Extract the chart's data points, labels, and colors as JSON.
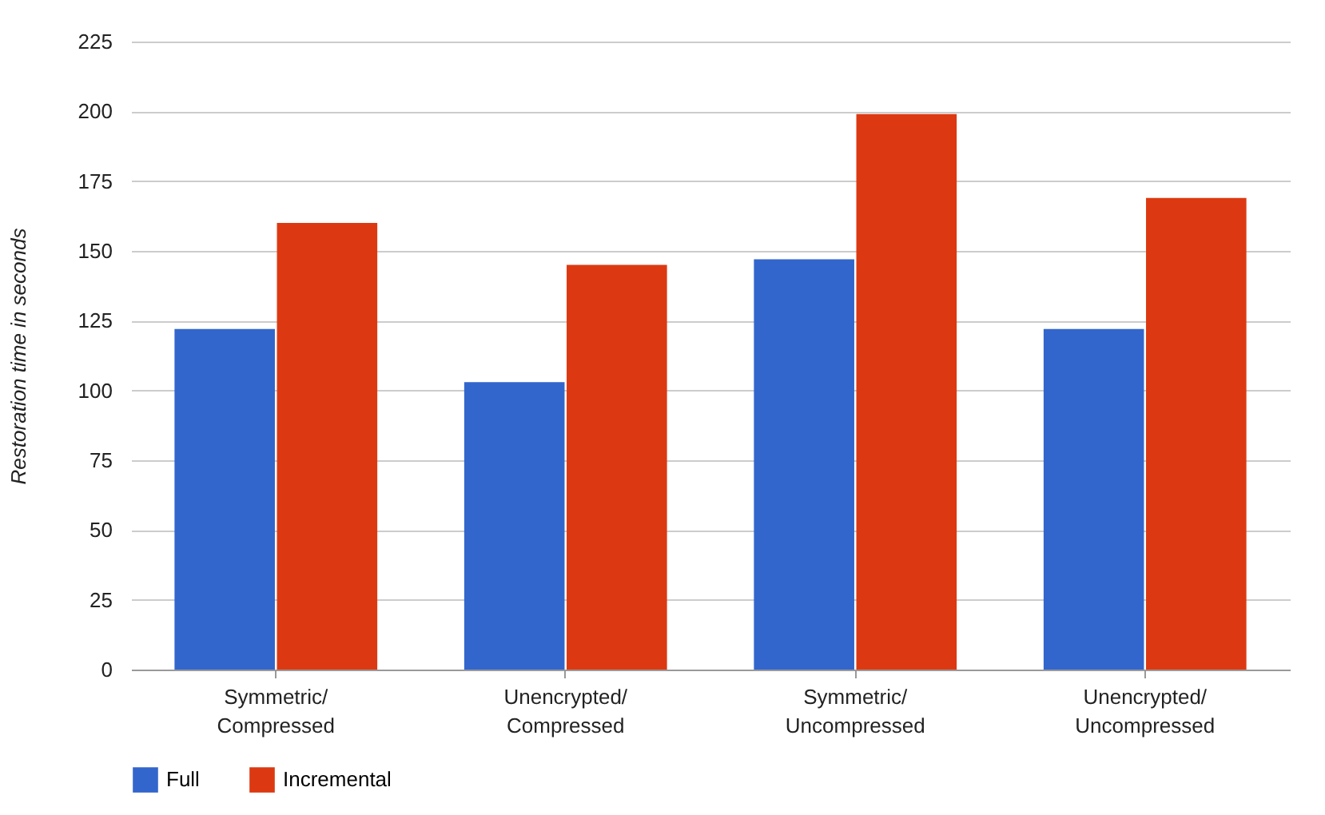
{
  "chart_data": {
    "type": "bar",
    "ylabel": "Restoration time in seconds",
    "categories": [
      "Symmetric/Compressed",
      "Unencrypted/Compressed",
      "Symmetric/Uncompressed",
      "Unencrypted/Uncompressed"
    ],
    "series": [
      {
        "name": "Full",
        "color": "#3366cc",
        "values": [
          122,
          103,
          147,
          122
        ]
      },
      {
        "name": "Incremental",
        "color": "#dc3912",
        "values": [
          160,
          145,
          199,
          169
        ]
      }
    ],
    "ylim": [
      0,
      225
    ],
    "yticks": [
      0,
      25,
      50,
      75,
      100,
      125,
      150,
      175,
      200,
      225
    ],
    "grid": "y",
    "legend": "bottom"
  }
}
